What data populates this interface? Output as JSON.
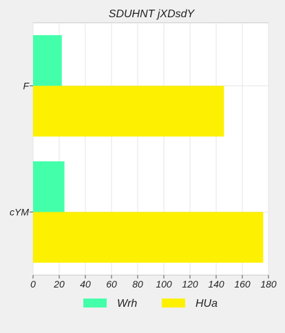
{
  "chart_data": {
    "type": "bar",
    "orientation": "horizontal",
    "title": "SDUHNT jXDsdY",
    "xlabel": "",
    "ylabel": "",
    "categories": [
      "F",
      "cYM"
    ],
    "series": [
      {
        "name": "Wrh",
        "values": [
          22,
          24
        ],
        "color": "#44ffaa"
      },
      {
        "name": "HUa",
        "values": [
          146,
          176
        ],
        "color": "#fdf000"
      }
    ],
    "xlim": [
      0,
      180
    ],
    "xticks": [
      "0",
      "20",
      "40",
      "60",
      "80",
      "100",
      "120",
      "140",
      "160",
      "180"
    ],
    "grid": true,
    "legend": "bottom"
  }
}
